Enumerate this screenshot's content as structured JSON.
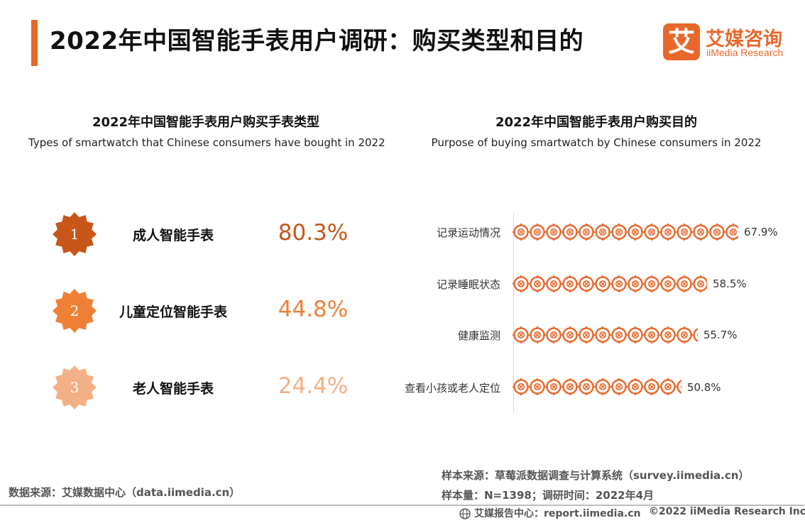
{
  "header": {
    "title": "2022年中国智能手表用户调研：购买类型和目的",
    "logo_mark": "艾",
    "logo_cn": "艾媒咨询",
    "logo_en": "iiMedia Research",
    "accent_color": "#e8682b"
  },
  "left": {
    "title": "2022年中国智能手表用户购买手表类型",
    "subtitle": "Types of smartwatch that Chinese consumers have bought in 2022"
  },
  "right": {
    "title": "2022年中国智能手表用户购买目的",
    "subtitle": "Purpose of buying smartwatch by Chinese consumers in 2022"
  },
  "chart_data": [
    {
      "type": "table",
      "title": "2022年中国智能手表用户购买手表类型",
      "subtitle": "Types of smartwatch that Chinese consumers have bought in 2022",
      "rows": [
        {
          "rank": "1",
          "category": "成人智能手表",
          "value": 80.3,
          "label": "80.3%",
          "color": "#c7561a"
        },
        {
          "rank": "2",
          "category": "儿童定位智能手表",
          "value": 44.8,
          "label": "44.8%",
          "color": "#ee8036"
        },
        {
          "rank": "3",
          "category": "老人智能手表",
          "value": 24.4,
          "label": "24.4%",
          "color": "#f3b086"
        }
      ]
    },
    {
      "type": "bar",
      "orientation": "horizontal",
      "title": "2022年中国智能手表用户购买目的",
      "subtitle": "Purpose of buying smartwatch by Chinese consumers in 2022",
      "categories": [
        "记录运动情况",
        "记录睡眠状态",
        "健康监测",
        "查看小孩或老人定位"
      ],
      "values": [
        67.9,
        58.5,
        55.7,
        50.8
      ],
      "labels": [
        "67.9%",
        "58.5%",
        "55.7%",
        "50.8%"
      ],
      "unit": "%",
      "xlim": [
        0,
        67.9
      ],
      "grid": false,
      "bar_color": "#e8682b"
    }
  ],
  "footer": {
    "source": "数据来源：艾媒数据中心（data.iimedia.cn）",
    "sample_source": "样本来源：草莓派数据调查与计算系统（survey.iimedia.cn）",
    "sample_size": "样本量：N=1398；调研时间：2022年4月",
    "report_center": "艾媒报告中心：report.iimedia.cn",
    "copyright": "©2022 iiMedia Research Inc"
  }
}
